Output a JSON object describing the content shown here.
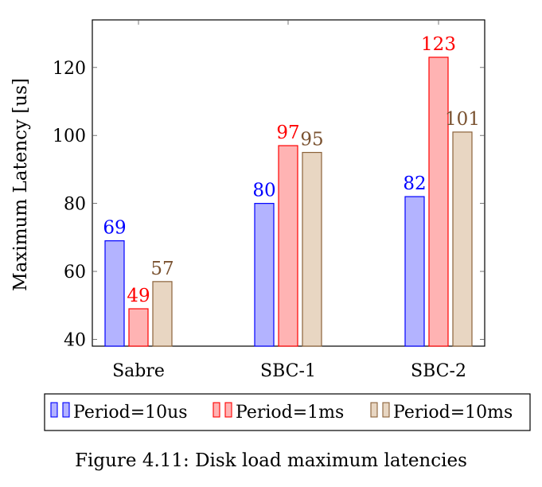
{
  "figure": {
    "caption": "Figure 4.11: Disk load maximum latencies"
  },
  "chart_data": {
    "type": "bar",
    "title": "",
    "xlabel": "",
    "ylabel": "Maximum Latency [us]",
    "ylim": [
      38,
      134
    ],
    "yticks": [
      40,
      60,
      80,
      100,
      120
    ],
    "categories": [
      "Sabre",
      "SBC-1",
      "SBC-2"
    ],
    "series": [
      {
        "name": "Period=10us",
        "values": [
          69,
          80,
          82
        ],
        "fill": "#b3b3ff",
        "stroke": "#0000ff",
        "label_color": "#0000ff"
      },
      {
        "name": "Period=1ms",
        "values": [
          49,
          97,
          123
        ],
        "fill": "#ffb3b3",
        "stroke": "#ff0000",
        "label_color": "#ff0000"
      },
      {
        "name": "Period=10ms",
        "values": [
          57,
          95,
          101
        ],
        "fill": "#e8d6c2",
        "stroke": "#8b6239",
        "label_color": "#7a5230"
      }
    ],
    "grid": false,
    "legend_position": "bottom"
  }
}
